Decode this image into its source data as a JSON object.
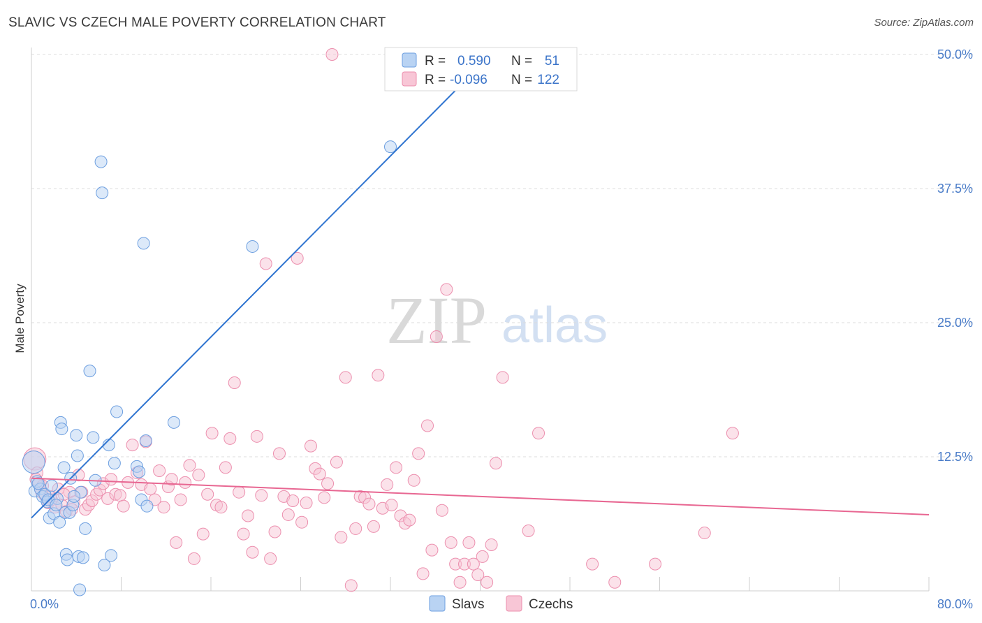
{
  "title": "SLAVIC VS CZECH MALE POVERTY CORRELATION CHART",
  "source": "Source: ZipAtlas.com",
  "watermark": {
    "part1": "ZIP",
    "part2": "atlas"
  },
  "colors": {
    "slavs_fill": "#b9d3f3",
    "slavs_stroke": "#6d9fe0",
    "slavs_line": "#2f74d0",
    "czechs_fill": "#f8c6d6",
    "czechs_stroke": "#ec8fae",
    "czechs_line": "#e86792",
    "grid": "#dcdcdc",
    "tick_label": "#4a7cc8"
  },
  "legend_top": {
    "rows": [
      {
        "r_label": "R =",
        "r_value": "0.590",
        "n_label": "N =",
        "n_value": "51"
      },
      {
        "r_label": "R =",
        "r_value": "-0.096",
        "n_label": "N =",
        "n_value": "122"
      }
    ]
  },
  "legend_bottom": {
    "items": [
      "Slavs",
      "Czechs"
    ]
  },
  "chart_data": {
    "type": "scatter",
    "title": "SLAVIC VS CZECH MALE POVERTY CORRELATION CHART",
    "xlabel": "",
    "ylabel": "Male Poverty",
    "xlim": [
      0,
      80
    ],
    "ylim": [
      0,
      50
    ],
    "x_tick_labels": [
      "0.0%",
      "80.0%"
    ],
    "y_ticks": [
      12.5,
      25.0,
      37.5,
      50.0
    ],
    "y_tick_labels": [
      "12.5%",
      "25.0%",
      "37.5%",
      "50.0%"
    ],
    "grid": true,
    "legend_placement": "top-center",
    "series": [
      {
        "name": "Slavs",
        "r": 0.59,
        "n": 51,
        "trend": {
          "x": [
            0,
            40.5
          ],
          "y": [
            6.8,
            49.5
          ]
        },
        "points": [
          [
            0.2,
            12.0
          ],
          [
            0.3,
            9.3
          ],
          [
            0.5,
            10.2
          ],
          [
            0.8,
            9.5
          ],
          [
            1.0,
            8.8
          ],
          [
            1.2,
            9.0
          ],
          [
            1.4,
            8.3
          ],
          [
            1.6,
            6.8
          ],
          [
            1.8,
            9.8
          ],
          [
            2.0,
            7.2
          ],
          [
            2.3,
            8.6
          ],
          [
            2.5,
            6.4
          ],
          [
            2.6,
            15.7
          ],
          [
            2.7,
            15.1
          ],
          [
            2.9,
            11.5
          ],
          [
            3.0,
            7.3
          ],
          [
            3.1,
            3.4
          ],
          [
            3.2,
            2.9
          ],
          [
            3.4,
            7.3
          ],
          [
            3.5,
            10.5
          ],
          [
            3.7,
            8.0
          ],
          [
            4.0,
            14.5
          ],
          [
            4.1,
            12.6
          ],
          [
            4.2,
            3.2
          ],
          [
            4.3,
            0.1
          ],
          [
            4.4,
            9.2
          ],
          [
            4.6,
            3.1
          ],
          [
            4.8,
            5.8
          ],
          [
            5.2,
            20.5
          ],
          [
            5.5,
            14.3
          ],
          [
            5.7,
            10.3
          ],
          [
            6.2,
            40.0
          ],
          [
            6.3,
            37.1
          ],
          [
            6.5,
            2.4
          ],
          [
            6.9,
            13.6
          ],
          [
            7.1,
            3.3
          ],
          [
            7.4,
            11.9
          ],
          [
            7.6,
            16.7
          ],
          [
            9.4,
            11.6
          ],
          [
            9.6,
            11.1
          ],
          [
            9.8,
            8.5
          ],
          [
            10.0,
            32.4
          ],
          [
            10.2,
            14.0
          ],
          [
            10.3,
            7.9
          ],
          [
            12.7,
            15.7
          ],
          [
            19.7,
            32.1
          ],
          [
            32.0,
            41.4
          ],
          [
            0.6,
            10.0
          ],
          [
            1.5,
            8.5
          ],
          [
            2.2,
            8.0
          ],
          [
            3.8,
            8.8
          ]
        ]
      },
      {
        "name": "Czechs",
        "r": -0.096,
        "n": 122,
        "trend": {
          "x": [
            0,
            80
          ],
          "y": [
            10.5,
            7.1
          ]
        },
        "points": [
          [
            0.3,
            12.3
          ],
          [
            0.5,
            11.0
          ],
          [
            0.7,
            10.0
          ],
          [
            0.9,
            9.2
          ],
          [
            1.2,
            8.9
          ],
          [
            1.5,
            8.2
          ],
          [
            1.8,
            8.5
          ],
          [
            2.1,
            7.8
          ],
          [
            2.4,
            9.5
          ],
          [
            2.7,
            8.0
          ],
          [
            3.1,
            7.4
          ],
          [
            3.4,
            9.2
          ],
          [
            3.8,
            8.3
          ],
          [
            4.2,
            10.8
          ],
          [
            4.5,
            9.2
          ],
          [
            4.8,
            7.6
          ],
          [
            5.1,
            8.0
          ],
          [
            5.4,
            8.4
          ],
          [
            5.8,
            9.0
          ],
          [
            6.1,
            9.4
          ],
          [
            6.4,
            10.0
          ],
          [
            6.8,
            8.6
          ],
          [
            7.1,
            10.4
          ],
          [
            7.5,
            9.0
          ],
          [
            7.9,
            8.9
          ],
          [
            8.2,
            7.9
          ],
          [
            8.6,
            10.1
          ],
          [
            9.0,
            13.6
          ],
          [
            9.4,
            11.0
          ],
          [
            9.8,
            9.9
          ],
          [
            10.2,
            13.9
          ],
          [
            10.6,
            9.5
          ],
          [
            11.0,
            8.5
          ],
          [
            11.4,
            11.2
          ],
          [
            11.8,
            7.8
          ],
          [
            12.2,
            9.7
          ],
          [
            12.5,
            10.4
          ],
          [
            12.9,
            4.5
          ],
          [
            13.3,
            8.5
          ],
          [
            13.7,
            10.1
          ],
          [
            14.1,
            11.7
          ],
          [
            14.5,
            3.0
          ],
          [
            14.9,
            10.8
          ],
          [
            15.3,
            5.3
          ],
          [
            15.7,
            9.0
          ],
          [
            16.1,
            14.7
          ],
          [
            16.5,
            8.0
          ],
          [
            16.9,
            7.8
          ],
          [
            17.3,
            11.5
          ],
          [
            17.7,
            14.2
          ],
          [
            18.1,
            19.4
          ],
          [
            18.5,
            9.2
          ],
          [
            18.9,
            5.3
          ],
          [
            19.3,
            7.0
          ],
          [
            19.7,
            3.6
          ],
          [
            20.1,
            14.4
          ],
          [
            20.5,
            8.9
          ],
          [
            20.9,
            30.5
          ],
          [
            21.3,
            3.0
          ],
          [
            21.7,
            5.5
          ],
          [
            22.1,
            12.8
          ],
          [
            22.5,
            8.8
          ],
          [
            22.9,
            7.1
          ],
          [
            23.3,
            8.4
          ],
          [
            23.7,
            31.0
          ],
          [
            24.1,
            6.4
          ],
          [
            24.5,
            8.2
          ],
          [
            24.9,
            13.5
          ],
          [
            25.3,
            11.4
          ],
          [
            25.7,
            10.9
          ],
          [
            26.1,
            8.7
          ],
          [
            26.4,
            10.0
          ],
          [
            26.8,
            50.0
          ],
          [
            27.2,
            12.0
          ],
          [
            27.6,
            5.0
          ],
          [
            28.0,
            19.9
          ],
          [
            28.5,
            0.5
          ],
          [
            28.9,
            5.8
          ],
          [
            29.3,
            8.8
          ],
          [
            29.7,
            8.7
          ],
          [
            30.1,
            8.1
          ],
          [
            30.5,
            6.0
          ],
          [
            30.9,
            20.1
          ],
          [
            31.3,
            7.7
          ],
          [
            31.7,
            9.9
          ],
          [
            32.1,
            8.0
          ],
          [
            32.5,
            11.5
          ],
          [
            32.9,
            7.0
          ],
          [
            33.3,
            6.3
          ],
          [
            33.7,
            6.6
          ],
          [
            34.1,
            10.3
          ],
          [
            34.5,
            12.8
          ],
          [
            34.9,
            1.6
          ],
          [
            35.3,
            15.4
          ],
          [
            35.7,
            3.8
          ],
          [
            36.1,
            23.7
          ],
          [
            36.6,
            7.5
          ],
          [
            37.0,
            28.1
          ],
          [
            37.4,
            4.5
          ],
          [
            37.8,
            2.5
          ],
          [
            38.2,
            0.8
          ],
          [
            38.6,
            2.5
          ],
          [
            39.0,
            4.5
          ],
          [
            39.4,
            2.5
          ],
          [
            39.8,
            1.5
          ],
          [
            40.2,
            3.2
          ],
          [
            40.6,
            0.8
          ],
          [
            41.0,
            4.3
          ],
          [
            41.4,
            11.9
          ],
          [
            42.0,
            19.9
          ],
          [
            44.3,
            5.6
          ],
          [
            45.2,
            14.7
          ],
          [
            50.0,
            2.5
          ],
          [
            52.0,
            0.8
          ],
          [
            55.6,
            2.5
          ],
          [
            60.0,
            5.4
          ],
          [
            62.5,
            14.7
          ],
          [
            0.4,
            10.4
          ],
          [
            1.0,
            9.8
          ],
          [
            1.7,
            8.8
          ],
          [
            2.9,
            9.0
          ],
          [
            3.6,
            7.6
          ]
        ]
      }
    ]
  }
}
